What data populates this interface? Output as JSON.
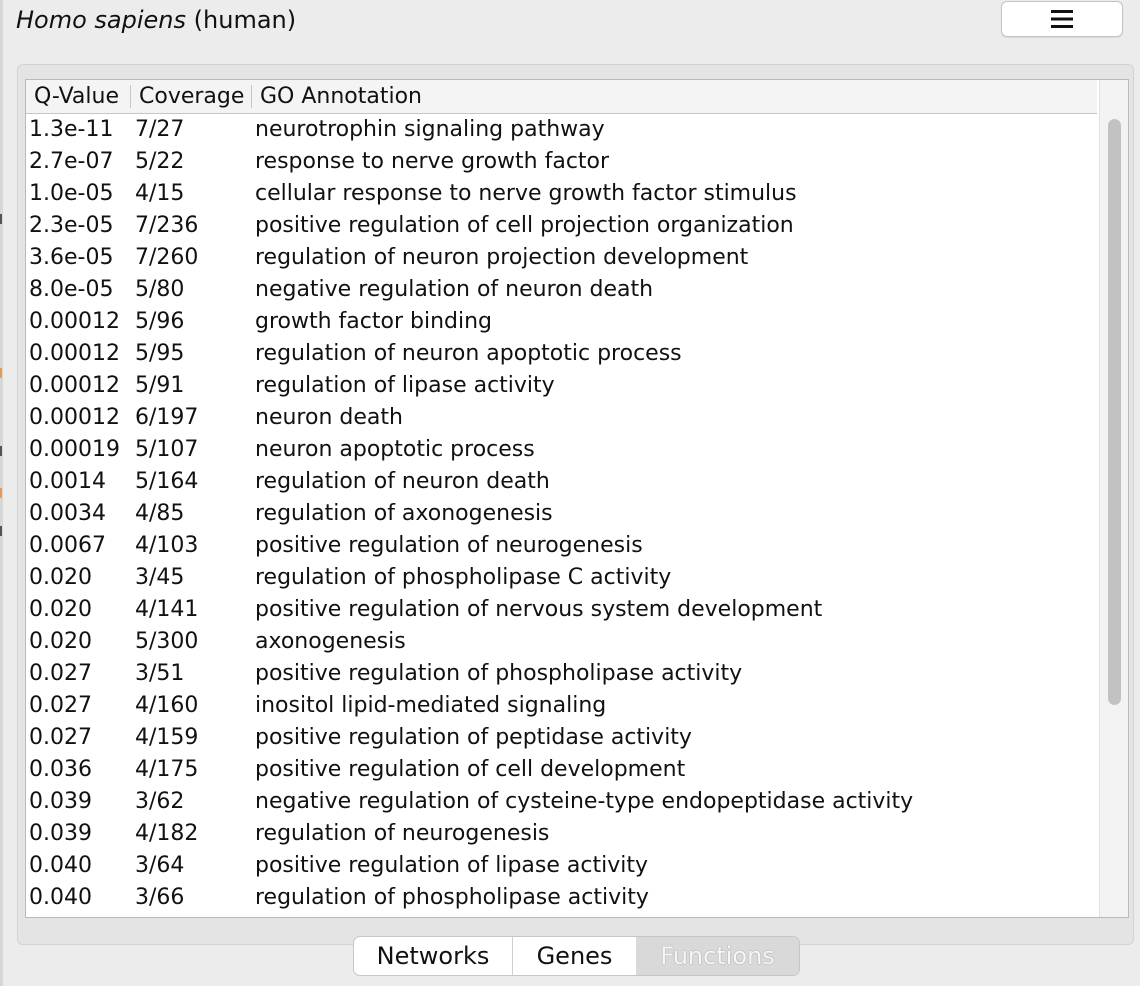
{
  "header": {
    "organism_species": "Homo sapiens",
    "organism_common": "(human)",
    "menu_icon": "hamburger-icon"
  },
  "table": {
    "columns": [
      "Q-Value",
      "Coverage",
      "GO Annotation"
    ],
    "rows": [
      {
        "q": "1.3e-11",
        "coverage": "7/27",
        "annotation": "neurotrophin signaling pathway"
      },
      {
        "q": "2.7e-07",
        "coverage": "5/22",
        "annotation": "response to nerve growth factor"
      },
      {
        "q": "1.0e-05",
        "coverage": "4/15",
        "annotation": "cellular response to nerve growth factor stimulus"
      },
      {
        "q": "2.3e-05",
        "coverage": "7/236",
        "annotation": "positive regulation of cell projection organization"
      },
      {
        "q": "3.6e-05",
        "coverage": "7/260",
        "annotation": "regulation of neuron projection development"
      },
      {
        "q": "8.0e-05",
        "coverage": "5/80",
        "annotation": "negative regulation of neuron death"
      },
      {
        "q": "0.00012",
        "coverage": "5/96",
        "annotation": "growth factor binding"
      },
      {
        "q": "0.00012",
        "coverage": "5/95",
        "annotation": "regulation of neuron apoptotic process"
      },
      {
        "q": "0.00012",
        "coverage": "5/91",
        "annotation": "regulation of lipase activity"
      },
      {
        "q": "0.00012",
        "coverage": "6/197",
        "annotation": "neuron death"
      },
      {
        "q": "0.00019",
        "coverage": "5/107",
        "annotation": "neuron apoptotic process"
      },
      {
        "q": "0.0014",
        "coverage": "5/164",
        "annotation": "regulation of neuron death"
      },
      {
        "q": "0.0034",
        "coverage": "4/85",
        "annotation": "regulation of axonogenesis"
      },
      {
        "q": "0.0067",
        "coverage": "4/103",
        "annotation": "positive regulation of neurogenesis"
      },
      {
        "q": "0.020",
        "coverage": "3/45",
        "annotation": "regulation of phospholipase C activity"
      },
      {
        "q": "0.020",
        "coverage": "4/141",
        "annotation": "positive regulation of nervous system development"
      },
      {
        "q": "0.020",
        "coverage": "5/300",
        "annotation": "axonogenesis"
      },
      {
        "q": "0.027",
        "coverage": "3/51",
        "annotation": "positive regulation of phospholipase activity"
      },
      {
        "q": "0.027",
        "coverage": "4/160",
        "annotation": "inositol lipid-mediated signaling"
      },
      {
        "q": "0.027",
        "coverage": "4/159",
        "annotation": "positive regulation of peptidase activity"
      },
      {
        "q": "0.036",
        "coverage": "4/175",
        "annotation": "positive regulation of cell development"
      },
      {
        "q": "0.039",
        "coverage": "3/62",
        "annotation": "negative regulation of cysteine-type endopeptidase activity"
      },
      {
        "q": "0.039",
        "coverage": "4/182",
        "annotation": "regulation of neurogenesis"
      },
      {
        "q": "0.040",
        "coverage": "3/64",
        "annotation": "positive regulation of lipase activity"
      },
      {
        "q": "0.040",
        "coverage": "3/66",
        "annotation": "regulation of phospholipase activity"
      }
    ]
  },
  "tabs": [
    {
      "label": "Networks",
      "active": false
    },
    {
      "label": "Genes",
      "active": false
    },
    {
      "label": "Functions",
      "active": true
    }
  ],
  "colors": {
    "left_marks": [
      "#555555",
      "#e59a5a",
      "#555555",
      "#e59a5a",
      "#555555"
    ]
  }
}
